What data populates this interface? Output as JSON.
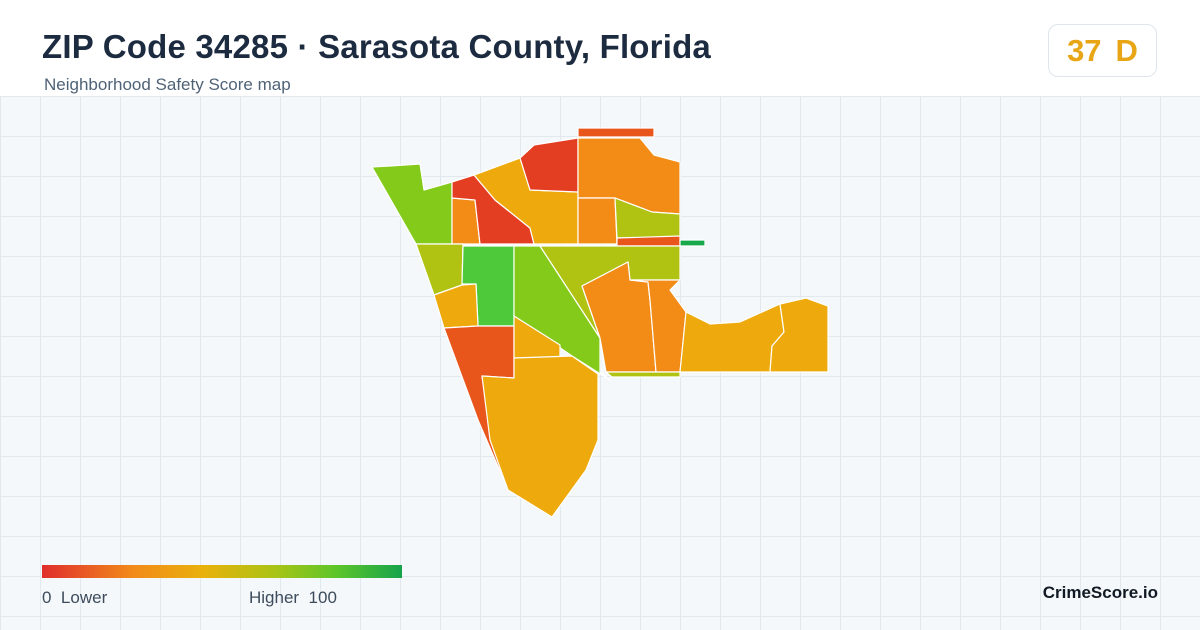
{
  "header": {
    "title": "ZIP Code 34285 · Sarasota County, Florida",
    "subtitle": "Neighborhood Safety Score map"
  },
  "score": {
    "value": "37",
    "grade": "D",
    "color": "#e8a515"
  },
  "legend": {
    "low_value": "0",
    "low_label": "Lower",
    "high_label": "Higher",
    "high_value": "100",
    "colors": [
      "#e02d2d",
      "#f28a1a",
      "#e9b10c",
      "#a8c414",
      "#5cc52a",
      "#16a34a"
    ]
  },
  "brand": "CrimeScore.io",
  "map": {
    "region_colors": {
      "red": "#e33e22",
      "red_orange": "#e8561c",
      "orange": "#f28c16",
      "amber": "#eeaa0c",
      "yellow_green": "#b0c212",
      "light_green": "#84ca1a",
      "green": "#4ec93a",
      "dark_green": "#18a84c"
    }
  }
}
